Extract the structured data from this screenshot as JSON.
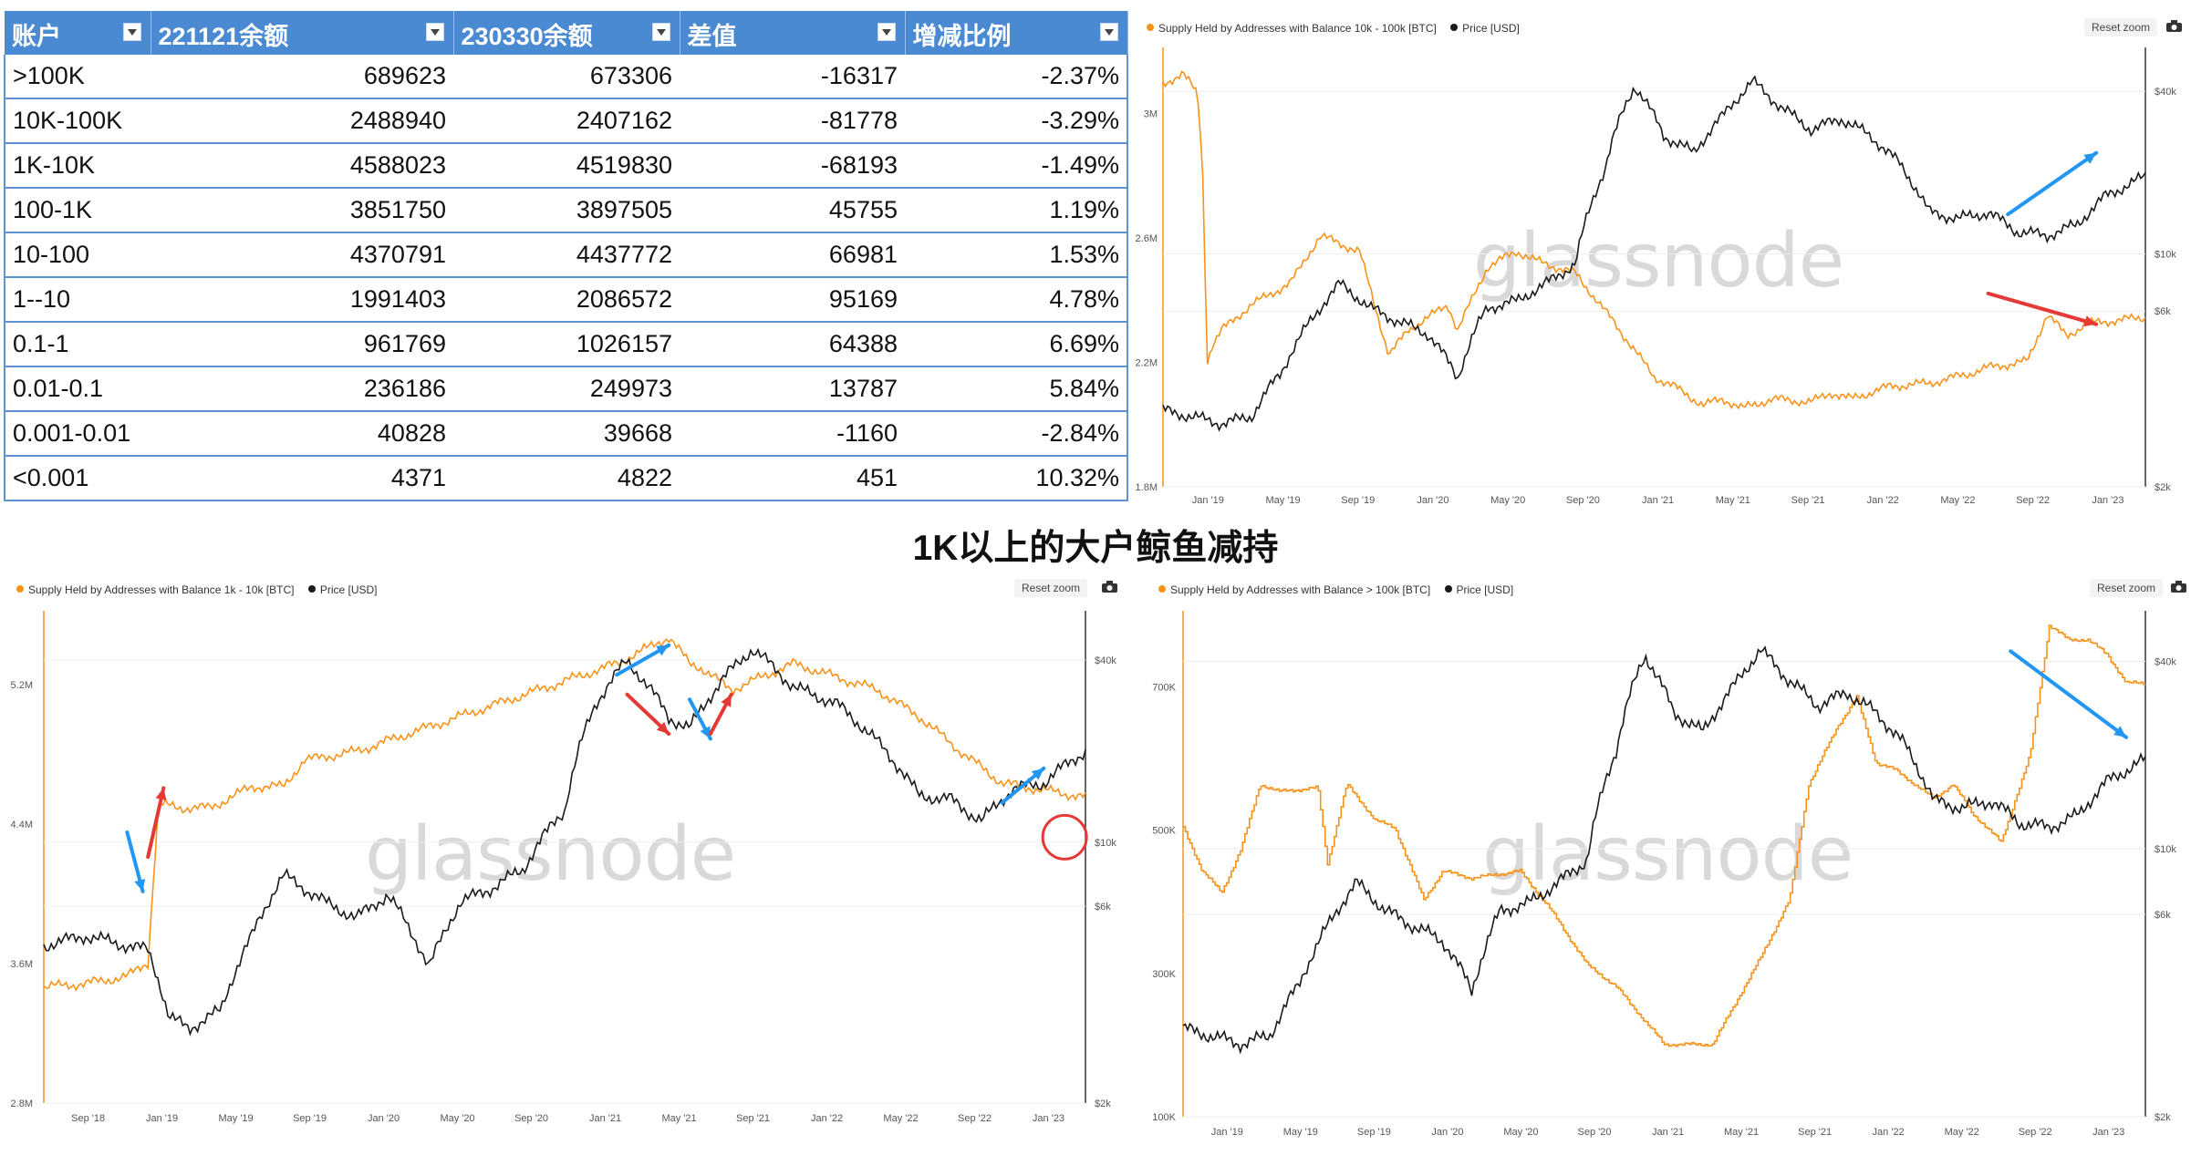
{
  "table": {
    "headers": [
      "账户",
      "221121余额",
      "230330余额",
      "差值",
      "增减比例"
    ],
    "rows": [
      [
        ">100K",
        "689623",
        "673306",
        "-16317",
        "-2.37%"
      ],
      [
        "10K-100K",
        "2488940",
        "2407162",
        "-81778",
        "-3.29%"
      ],
      [
        "1K-10K",
        "4588023",
        "4519830",
        "-68193",
        "-1.49%"
      ],
      [
        "100-1K",
        "3851750",
        "3897505",
        "45755",
        "1.19%"
      ],
      [
        "10-100",
        "4370791",
        "4437772",
        "66981",
        "1.53%"
      ],
      [
        "1--10",
        "1991403",
        "2086572",
        "95169",
        "4.78%"
      ],
      [
        "0.1-1",
        "961769",
        "1026157",
        "64388",
        "6.69%"
      ],
      [
        "0.01-0.1",
        "236186",
        "249973",
        "13787",
        "5.84%"
      ],
      [
        "0.001-0.01",
        "40828",
        "39668",
        "-1160",
        "-2.84%"
      ],
      [
        "<0.001",
        "4371",
        "4822",
        "451",
        "10.32%"
      ]
    ]
  },
  "center_title": "1K以上的大户鲸鱼减持",
  "watermark": "glassnode",
  "reset_zoom": "Reset zoom",
  "colors": {
    "supply": "#f7931a",
    "price": "#1a1a1a",
    "arrow_blue": "#2196f3",
    "arrow_red": "#e53935",
    "header": "#4a8ad2"
  },
  "chart_data": [
    {
      "id": "c10k100k",
      "type": "line",
      "legend": [
        "Supply Held by Addresses with Balance 10k - 100k [BTC]",
        "Price [USD]"
      ],
      "x_ticks": [
        "Jan '19",
        "May '19",
        "Sep '19",
        "Jan '20",
        "May '20",
        "Sep '20",
        "Jan '21",
        "May '21",
        "Sep '21",
        "Jan '22",
        "May '22",
        "Sep '22",
        "Jan '23"
      ],
      "y_left_ticks": [
        "3M",
        "2.6M",
        "2.2M",
        "1.8M"
      ],
      "y_left_range": [
        1.8,
        3.2
      ],
      "y_right_ticks": [
        "$40k",
        "$10k",
        "$6k",
        "$2k"
      ],
      "supply_t": [
        0,
        0.02,
        0.035,
        0.04,
        0.045,
        0.05,
        0.06,
        0.09,
        0.13,
        0.16,
        0.2,
        0.23,
        0.25,
        0.29,
        0.3,
        0.33,
        0.36,
        0.38,
        0.42,
        0.46,
        0.5,
        0.52,
        0.55,
        0.57,
        0.59,
        0.62,
        0.66,
        0.68,
        0.7,
        0.74,
        0.78,
        0.82,
        0.84,
        0.88,
        0.9,
        0.92,
        0.94,
        0.97,
        1.0
      ],
      "supply_v": [
        3.08,
        3.12,
        3.05,
        2.85,
        2.2,
        2.25,
        2.3,
        2.38,
        2.45,
        2.6,
        2.55,
        2.22,
        2.3,
        2.38,
        2.3,
        2.5,
        2.55,
        2.52,
        2.48,
        2.32,
        2.15,
        2.12,
        2.06,
        2.08,
        2.05,
        2.08,
        2.07,
        2.1,
        2.08,
        2.12,
        2.13,
        2.16,
        2.18,
        2.2,
        2.35,
        2.28,
        2.32,
        2.33,
        2.34
      ],
      "price_t": [
        0,
        0.03,
        0.06,
        0.09,
        0.12,
        0.15,
        0.18,
        0.21,
        0.24,
        0.27,
        0.3,
        0.33,
        0.36,
        0.39,
        0.42,
        0.45,
        0.48,
        0.51,
        0.54,
        0.57,
        0.6,
        0.63,
        0.66,
        0.69,
        0.72,
        0.75,
        0.78,
        0.81,
        0.84,
        0.87,
        0.9,
        0.93,
        0.96,
        1.0
      ],
      "price_v": [
        3800,
        3600,
        3400,
        3600,
        5200,
        8000,
        11000,
        9000,
        8000,
        7200,
        5000,
        9000,
        9500,
        11000,
        13000,
        29000,
        58000,
        38000,
        33000,
        45000,
        60000,
        48000,
        40000,
        44000,
        38000,
        30000,
        20000,
        19000,
        20000,
        17000,
        16500,
        18000,
        23000,
        27000
      ],
      "arrows": [
        {
          "color": "blue",
          "from": [
            0.86,
            0.38
          ],
          "to": [
            0.95,
            0.24
          ]
        },
        {
          "color": "red",
          "from": [
            0.84,
            0.56
          ],
          "to": [
            0.95,
            0.63
          ]
        }
      ]
    },
    {
      "id": "c1k10k",
      "type": "line",
      "legend": [
        "Supply Held by Addresses with Balance 1k - 10k [BTC]",
        "Price [USD]"
      ],
      "x_ticks": [
        "Sep '18",
        "Jan '19",
        "May '19",
        "Sep '19",
        "Jan '20",
        "May '20",
        "Sep '20",
        "Jan '21",
        "May '21",
        "Sep '21",
        "Jan '22",
        "May '22",
        "Sep '22",
        "Jan '23"
      ],
      "y_left_ticks": [
        "5.2M",
        "4.4M",
        "3.6M",
        "2.8M"
      ],
      "y_left_range": [
        2.8,
        5.6
      ],
      "y_right_ticks": [
        "$40k",
        "$10k",
        "$6k",
        "$2k"
      ],
      "supply_t": [
        0,
        0.04,
        0.08,
        0.1,
        0.11,
        0.13,
        0.16,
        0.2,
        0.23,
        0.25,
        0.3,
        0.4,
        0.5,
        0.55,
        0.6,
        0.62,
        0.63,
        0.66,
        0.68,
        0.7,
        0.72,
        0.8,
        0.84,
        0.88,
        0.92,
        0.94,
        0.97,
        1.0
      ],
      "supply_v": [
        3.46,
        3.48,
        3.52,
        3.6,
        4.5,
        4.48,
        4.48,
        4.6,
        4.6,
        4.75,
        4.8,
        5.0,
        5.2,
        5.3,
        5.45,
        5.3,
        5.28,
        5.15,
        5.2,
        5.25,
        5.3,
        5.15,
        5.0,
        4.8,
        4.62,
        4.6,
        4.57,
        4.54
      ],
      "price_t": [
        0,
        0.04,
        0.08,
        0.1,
        0.12,
        0.14,
        0.17,
        0.2,
        0.23,
        0.27,
        0.3,
        0.33,
        0.37,
        0.4,
        0.43,
        0.46,
        0.5,
        0.53,
        0.56,
        0.6,
        0.62,
        0.65,
        0.68,
        0.72,
        0.76,
        0.8,
        0.84,
        0.87,
        0.9,
        0.93,
        0.96,
        1.0
      ],
      "price_v": [
        6500,
        7000,
        6500,
        6300,
        3800,
        3500,
        4000,
        7000,
        11000,
        9000,
        8000,
        9500,
        5500,
        9000,
        10000,
        11500,
        18000,
        40000,
        55000,
        36000,
        33000,
        47000,
        60000,
        45000,
        40000,
        30000,
        20000,
        19500,
        16500,
        21000,
        22000,
        28000
      ],
      "arrows": [
        {
          "color": "blue",
          "from": [
            0.08,
            0.45
          ],
          "to": [
            0.095,
            0.57
          ]
        },
        {
          "color": "red",
          "from": [
            0.1,
            0.5
          ],
          "to": [
            0.115,
            0.36
          ]
        },
        {
          "color": "blue",
          "from": [
            0.55,
            0.13
          ],
          "to": [
            0.6,
            0.07
          ]
        },
        {
          "color": "red",
          "from": [
            0.56,
            0.17
          ],
          "to": [
            0.6,
            0.25
          ]
        },
        {
          "color": "blue",
          "from": [
            0.62,
            0.18
          ],
          "to": [
            0.64,
            0.26
          ]
        },
        {
          "color": "red",
          "from": [
            0.64,
            0.25
          ],
          "to": [
            0.66,
            0.17
          ]
        },
        {
          "color": "blue",
          "from": [
            0.92,
            0.39
          ],
          "to": [
            0.96,
            0.32
          ]
        }
      ],
      "circle": {
        "t": 0.98,
        "y": 0.46
      }
    },
    {
      "id": "c100k",
      "type": "line",
      "legend": [
        "Supply Held by Addresses with Balance > 100k [BTC]",
        "Price [USD]"
      ],
      "x_ticks": [
        "Jan '19",
        "May '19",
        "Sep '19",
        "Jan '20",
        "May '20",
        "Sep '20",
        "Jan '21",
        "May '21",
        "Sep '21",
        "Jan '22",
        "May '22",
        "Sep '22",
        "Jan '23"
      ],
      "y_left_ticks": [
        "700K",
        "500K",
        "300K",
        "100K"
      ],
      "y_left_range": [
        100,
        800
      ],
      "y_right_ticks": [
        "$40k",
        "$10k",
        "$6k",
        "$2k"
      ],
      "supply_t": [
        0,
        0.02,
        0.04,
        0.06,
        0.08,
        0.1,
        0.14,
        0.15,
        0.17,
        0.2,
        0.22,
        0.25,
        0.27,
        0.3,
        0.35,
        0.38,
        0.42,
        0.45,
        0.5,
        0.55,
        0.6,
        0.63,
        0.65,
        0.68,
        0.7,
        0.72,
        0.74,
        0.78,
        0.8,
        0.82,
        0.85,
        0.88,
        0.9,
        0.92,
        0.94,
        0.96,
        0.98,
        1.0
      ],
      "supply_v": [
        500,
        440,
        410,
        470,
        560,
        550,
        555,
        450,
        560,
        510,
        500,
        400,
        440,
        430,
        440,
        390,
        310,
        280,
        200,
        200,
        320,
        400,
        560,
        640,
        680,
        590,
        580,
        540,
        560,
        520,
        480,
        600,
        780,
        760,
        760,
        740,
        700,
        700
      ],
      "price_t": [
        0,
        0.03,
        0.06,
        0.09,
        0.12,
        0.15,
        0.18,
        0.21,
        0.24,
        0.27,
        0.3,
        0.33,
        0.36,
        0.39,
        0.42,
        0.45,
        0.48,
        0.51,
        0.54,
        0.57,
        0.6,
        0.63,
        0.66,
        0.69,
        0.72,
        0.75,
        0.78,
        0.81,
        0.84,
        0.87,
        0.9,
        0.93,
        0.96,
        1.0
      ],
      "price_v": [
        3800,
        3600,
        3400,
        3600,
        5200,
        8000,
        11000,
        9000,
        8000,
        7200,
        5000,
        9000,
        9500,
        11000,
        13000,
        29000,
        58000,
        38000,
        33000,
        45000,
        60000,
        48000,
        40000,
        44000,
        38000,
        30000,
        20000,
        19000,
        20000,
        17000,
        16500,
        18000,
        23000,
        27000
      ],
      "arrows": [
        {
          "color": "blue",
          "from": [
            0.86,
            0.08
          ],
          "to": [
            0.98,
            0.25
          ]
        }
      ]
    }
  ]
}
